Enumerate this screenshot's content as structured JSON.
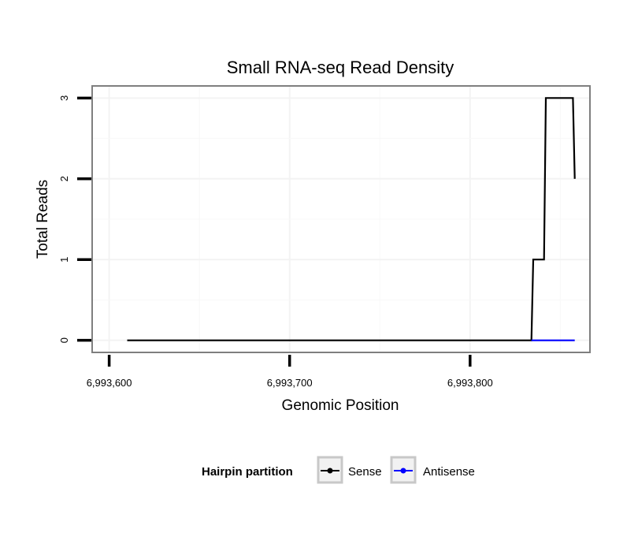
{
  "chart_data": {
    "type": "line",
    "title": "Small RNA-seq Read Density",
    "xlabel": "Genomic Position",
    "ylabel": "Total Reads",
    "xlim": [
      6993591,
      6993866
    ],
    "ylim": [
      -0.14,
      3.14
    ],
    "x_ticks": [
      6993600,
      6993700,
      6993800
    ],
    "x_tick_labels": [
      "6,993,600",
      "6,993,700",
      "6,993,800"
    ],
    "y_ticks": [
      0,
      1,
      2,
      3
    ],
    "y_tick_labels": [
      "0",
      "1",
      "2",
      "3"
    ],
    "grid": true,
    "legend": {
      "title": "Hairpin partition",
      "placement": "bottom",
      "entries": [
        {
          "label": "Sense",
          "color": "#000000"
        },
        {
          "label": "Antisense",
          "color": "#0000ff"
        }
      ]
    },
    "series": [
      {
        "name": "Sense",
        "color": "#000000",
        "x": [
          6993610,
          6993834,
          6993835,
          6993841,
          6993842,
          6993857,
          6993858
        ],
        "y": [
          0,
          0,
          1,
          1,
          3,
          3,
          2
        ]
      },
      {
        "name": "Antisense",
        "color": "#0000ff",
        "x": [
          6993834,
          6993858
        ],
        "y": [
          0,
          0
        ]
      }
    ]
  }
}
